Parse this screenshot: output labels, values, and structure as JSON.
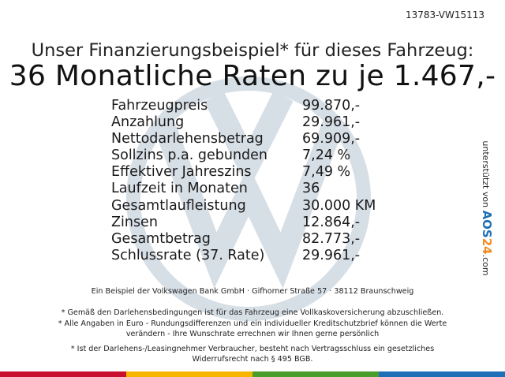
{
  "ref": "13783-VW15113",
  "headline": "Unser Finanzierungsbeispiel* für dieses Fahrzeug:",
  "rate_line": "36 Monatliche Raten zu je 1.467,-",
  "rows": [
    {
      "label": "Fahrzeugpreis",
      "value": "99.870,-"
    },
    {
      "label": "Anzahlung",
      "value": "29.961,-"
    },
    {
      "label": "Nettodarlehensbetrag",
      "value": "69.909,-"
    },
    {
      "label": "Sollzins p.a. gebunden",
      "value": "7,24 %"
    },
    {
      "label": "Effektiver Jahreszins",
      "value": "7,49 %"
    },
    {
      "label": "Laufzeit in Monaten",
      "value": "36"
    },
    {
      "label": "Gesamtlaufleistung",
      "value": "30.000 KM"
    },
    {
      "label": "Zinsen",
      "value": "12.864,-"
    },
    {
      "label": "Gesamtbetrag",
      "value": "82.773,-"
    },
    {
      "label": "Schlussrate (37. Rate)",
      "value": "29.961,-"
    }
  ],
  "side": {
    "prefix": "unterstützt von",
    "brand_a": "AOS",
    "brand_b": "24",
    "suffix": ".com"
  },
  "fine": {
    "bank": "Ein Beispiel der Volkswagen Bank GmbH · Gifhorner Straße 57 · 38112 Braunschweig",
    "n1": "* Gemäß den Darlehensbedingungen ist für das Fahrzeug eine Vollkaskoversicherung abzuschließen.",
    "n2a": "* Alle Angaben in Euro - Rundungsdifferenzen und ein individueller Kreditschutzbrief können die Werte",
    "n2b": "verändern - Ihre Wunschrate errechnen wir Ihnen gerne persönlich",
    "n3a": "* Ist der Darlehens-/Leasingnehmer Verbraucher, besteht nach Vertragsschluss ein gesetzliches",
    "n3b": "Widerrufsrecht nach § 495 BGB."
  },
  "colors": {
    "logo": "#d6dee6",
    "bar": [
      "#c8102e",
      "#f7b500",
      "#4a9d2a",
      "#1d6fb8"
    ]
  }
}
